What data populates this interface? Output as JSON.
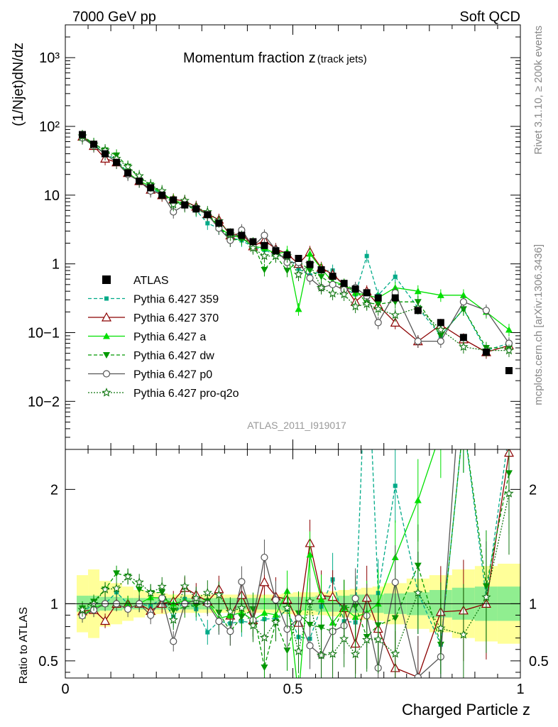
{
  "header": {
    "left": "7000 GeV pp",
    "right": "Soft QCD"
  },
  "side_labels": {
    "rivet": "Rivet 3.1.10, ≥ 200k events",
    "mcplots": "mcplots.cern.ch [arXiv:1306.3436]"
  },
  "chart_data": [
    {
      "type": "scatter",
      "title": "Momentum fraction z",
      "title_suffix": "(track jets)",
      "watermark": "ATLAS_2011_I919017",
      "ylabel": "(1/Njet)dN/dz",
      "y_scale": "log",
      "ylim": [
        0.002,
        3000
      ],
      "xlim": [
        0,
        1
      ],
      "y_tick_labels": [
        "10−2",
        "10−1",
        "1",
        "10",
        "10²",
        "10³"
      ],
      "y_tick_values": [
        0.01,
        0.1,
        1,
        10,
        100,
        1000
      ],
      "legend_position": "bottom-left",
      "x": [
        0.0375,
        0.0625,
        0.0875,
        0.1125,
        0.1375,
        0.1625,
        0.1875,
        0.2125,
        0.2375,
        0.2625,
        0.2875,
        0.3125,
        0.3375,
        0.3625,
        0.3875,
        0.4125,
        0.4375,
        0.4625,
        0.4875,
        0.5125,
        0.5375,
        0.5625,
        0.5875,
        0.6125,
        0.6375,
        0.6625,
        0.6875,
        0.725,
        0.775,
        0.825,
        0.875,
        0.925,
        0.975
      ],
      "series": [
        {
          "name": "ATLAS",
          "color": "#000000",
          "marker": "square-filled",
          "line": "none",
          "values": [
            76,
            55,
            40,
            30,
            21,
            16,
            12.8,
            10,
            8.5,
            7.2,
            6.3,
            5.2,
            3.9,
            2.9,
            2.6,
            2.1,
            1.85,
            1.55,
            1.35,
            1.2,
            0.98,
            0.82,
            0.66,
            0.52,
            0.43,
            0.38,
            0.32,
            0.32,
            0.21,
            0.14,
            0.085,
            0.052,
            0.028
          ]
        },
        {
          "name": "Pythia 6.427 359",
          "color": "#00aa88",
          "marker": "square-small",
          "line": "dashed",
          "values": [
            70,
            55,
            40,
            33,
            21,
            16,
            12.5,
            10.5,
            7.5,
            7.5,
            6,
            3.9,
            3.3,
            2.4,
            2.2,
            1.75,
            1.6,
            1.35,
            1.28,
            0.85,
            0.68,
            0.8,
            0.8,
            0.44,
            0.36,
            1.3,
            0.35,
            0.65,
            0.23,
            0.09,
            0.22,
            0.055,
            0.07
          ]
        },
        {
          "name": "Pythia 6.427 370",
          "color": "#8b0000",
          "marker": "triangle-open",
          "line": "solid",
          "values": [
            71,
            52,
            34,
            30,
            21,
            16,
            12,
            10,
            8.7,
            8.2,
            6.8,
            5.3,
            4.4,
            2.6,
            2.8,
            1.8,
            2.2,
            1.65,
            1.4,
            1.0,
            1.5,
            0.88,
            0.7,
            0.5,
            0.28,
            0.4,
            0.25,
            0.14,
            0.075,
            0.13,
            0.08,
            0.052,
            0.065
          ]
        },
        {
          "name": "Pythia 6.427 a",
          "color": "#00e000",
          "marker": "triangle-filled",
          "line": "solid",
          "values": [
            68,
            53,
            40,
            30,
            21,
            16,
            13.5,
            10.5,
            8.5,
            7.4,
            6.4,
            5.3,
            3.4,
            2.6,
            2.4,
            1.8,
            1.7,
            1.4,
            1.5,
            0.22,
            1.4,
            0.85,
            0.55,
            0.5,
            0.38,
            0.35,
            0.32,
            0.45,
            0.4,
            0.35,
            0.35,
            0.2,
            0.11
          ]
        },
        {
          "name": "Pythia 6.427 dw",
          "color": "#009900",
          "marker": "triangle-down",
          "line": "dashed",
          "values": [
            73,
            56,
            45,
            38,
            26,
            18,
            14,
            11,
            8,
            7,
            6.2,
            5.3,
            3.6,
            2.2,
            2.3,
            2,
            0.82,
            1.3,
            0.8,
            1.1,
            0.8,
            0.65,
            0.5,
            0.5,
            0.42,
            0.27,
            0.26,
            0.28,
            0.28,
            0.09,
            0.22,
            0.06,
            0.06
          ]
        },
        {
          "name": "Pythia 6.427 p0",
          "color": "#555555",
          "marker": "circle-open",
          "line": "solid",
          "values": [
            68,
            52,
            40,
            30,
            20,
            16,
            11.5,
            10.5,
            5.7,
            7.2,
            6.5,
            5.2,
            3.3,
            2.2,
            3.1,
            1.8,
            2.6,
            1.6,
            1.05,
            1.05,
            0.62,
            0.45,
            0.5,
            0.42,
            0.45,
            0.34,
            0.14,
            0.38,
            0.075,
            0.075,
            0.28,
            0.21,
            0.07
          ]
        },
        {
          "name": "Pythia 6.427 pro-q2o",
          "color": "#117711",
          "marker": "star",
          "line": "dotted",
          "values": [
            72,
            55,
            45,
            34,
            26,
            19,
            14,
            11.5,
            7.3,
            8.3,
            6.6,
            5.7,
            4.2,
            2.7,
            2.5,
            1.7,
            1.3,
            1.3,
            1.3,
            0.7,
            1.0,
            0.45,
            0.37,
            0.36,
            0.24,
            0.26,
            0.22,
            0.18,
            0.23,
            0.11,
            0.062,
            0.055,
            0.055
          ]
        }
      ]
    },
    {
      "type": "scatter",
      "xlabel": "Charged Particle z",
      "ylabel": "Ratio to ATLAS",
      "xlim": [
        0,
        1
      ],
      "ylim": [
        0.35,
        2.35
      ],
      "x_tick_labels": [
        "0",
        "0.5",
        "1"
      ],
      "x_tick_values": [
        0,
        0.5,
        1
      ],
      "y_tick_labels": [
        "0.5",
        "1",
        "2"
      ],
      "y_tick_values": [
        0.5,
        1,
        2
      ],
      "reference_line": 1,
      "band_colors": {
        "inner": "#90ee90",
        "outer": "#ffff99"
      },
      "x_edges": [
        0.025,
        0.05,
        0.075,
        0.1,
        0.125,
        0.15,
        0.175,
        0.2,
        0.225,
        0.25,
        0.275,
        0.3,
        0.325,
        0.35,
        0.375,
        0.4,
        0.425,
        0.45,
        0.475,
        0.5,
        0.525,
        0.55,
        0.575,
        0.6,
        0.625,
        0.65,
        0.675,
        0.7,
        0.75,
        0.8,
        0.85,
        0.9,
        0.95,
        1.0
      ],
      "band_inner": [
        0.07,
        0.07,
        0.06,
        0.06,
        0.05,
        0.05,
        0.05,
        0.05,
        0.05,
        0.05,
        0.05,
        0.05,
        0.05,
        0.05,
        0.05,
        0.05,
        0.05,
        0.05,
        0.06,
        0.06,
        0.06,
        0.07,
        0.07,
        0.07,
        0.08,
        0.08,
        0.08,
        0.09,
        0.1,
        0.12,
        0.14,
        0.15,
        0.15
      ],
      "band_outer": [
        0.25,
        0.3,
        0.2,
        0.18,
        0.15,
        0.12,
        0.1,
        0.09,
        0.08,
        0.08,
        0.08,
        0.08,
        0.08,
        0.08,
        0.08,
        0.08,
        0.08,
        0.08,
        0.09,
        0.1,
        0.1,
        0.1,
        0.11,
        0.12,
        0.13,
        0.14,
        0.15,
        0.18,
        0.22,
        0.25,
        0.3,
        0.33,
        0.35
      ]
    }
  ]
}
